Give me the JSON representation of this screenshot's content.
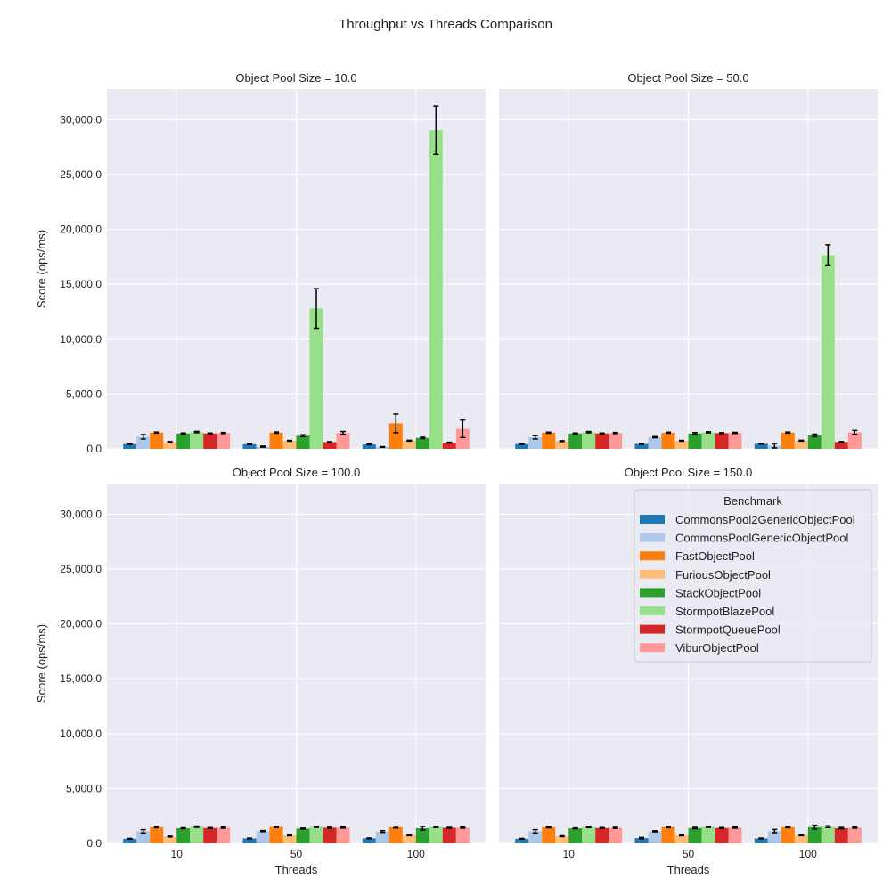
{
  "figure": {
    "title": "Throughput vs Threads Comparison",
    "background": "#ffffff",
    "axes_background": "#eaeaf2",
    "grid_color": "#ffffff",
    "errorbar_color": "#000000"
  },
  "chart_data": {
    "type": "bar",
    "title": "Throughput vs Threads Comparison",
    "xlabel": "Threads",
    "ylabel": "Score (ops/ms)",
    "ylim": [
      0,
      32800
    ],
    "yticks": [
      "0.0",
      "5,000.0",
      "10,000.0",
      "15,000.0",
      "20,000.0",
      "25,000.0",
      "30,000.0"
    ],
    "ytick_values": [
      0,
      5000,
      10000,
      15000,
      20000,
      25000,
      30000
    ],
    "categories": [
      "10",
      "50",
      "100"
    ],
    "grid": true,
    "legend": {
      "title": "Benchmark",
      "placement": "top-right of panel 4",
      "series": [
        {
          "name": "CommonsPool2GenericObjectPool",
          "color": "#1f77b4"
        },
        {
          "name": "CommonsPoolGenericObjectPool",
          "color": "#aec7e8"
        },
        {
          "name": "FastObjectPool",
          "color": "#ff7f0e"
        },
        {
          "name": "FuriousObjectPool",
          "color": "#ffbb78"
        },
        {
          "name": "StackObjectPool",
          "color": "#2ca02c"
        },
        {
          "name": "StormpotBlazePool",
          "color": "#98df8a"
        },
        {
          "name": "StormpotQueuePool",
          "color": "#d62728"
        },
        {
          "name": "ViburObjectPool",
          "color": "#ff9896"
        }
      ]
    },
    "panels": [
      {
        "title": "Object Pool Size = 10.0",
        "values": [
          [
            430,
            420,
            400
          ],
          [
            1100,
            200,
            170
          ],
          [
            1480,
            1480,
            2320
          ],
          [
            620,
            730,
            740
          ],
          [
            1400,
            1200,
            1000
          ],
          [
            1530,
            12800,
            29050
          ],
          [
            1400,
            610,
            560
          ],
          [
            1440,
            1450,
            1830
          ]
        ],
        "errors": [
          [
            30,
            30,
            30
          ],
          [
            200,
            50,
            30
          ],
          [
            50,
            60,
            850
          ],
          [
            40,
            40,
            40
          ],
          [
            40,
            80,
            60
          ],
          [
            60,
            1800,
            2200
          ],
          [
            40,
            40,
            40
          ],
          [
            50,
            130,
            800
          ]
        ]
      },
      {
        "title": "Object Pool Size = 50.0",
        "values": [
          [
            430,
            450,
            460
          ],
          [
            1050,
            1060,
            280
          ],
          [
            1470,
            1470,
            1480
          ],
          [
            700,
            730,
            740
          ],
          [
            1400,
            1400,
            1220
          ],
          [
            1520,
            1510,
            17650
          ],
          [
            1400,
            1430,
            620
          ],
          [
            1440,
            1450,
            1500
          ]
        ],
        "errors": [
          [
            30,
            30,
            30
          ],
          [
            150,
            50,
            200
          ],
          [
            50,
            50,
            50
          ],
          [
            40,
            40,
            40
          ],
          [
            40,
            80,
            120
          ],
          [
            60,
            50,
            950
          ],
          [
            40,
            40,
            40
          ],
          [
            50,
            50,
            180
          ]
        ]
      },
      {
        "title": "Object Pool Size = 100.0",
        "values": [
          [
            420,
            450,
            460
          ],
          [
            1100,
            1120,
            1080
          ],
          [
            1480,
            1500,
            1480
          ],
          [
            620,
            730,
            740
          ],
          [
            1380,
            1350,
            1380
          ],
          [
            1520,
            1510,
            1500
          ],
          [
            1400,
            1430,
            1420
          ],
          [
            1430,
            1440,
            1430
          ]
        ],
        "errors": [
          [
            30,
            30,
            30
          ],
          [
            150,
            50,
            80
          ],
          [
            50,
            50,
            80
          ],
          [
            40,
            40,
            40
          ],
          [
            40,
            40,
            160
          ],
          [
            60,
            50,
            60
          ],
          [
            40,
            40,
            40
          ],
          [
            50,
            50,
            50
          ]
        ]
      },
      {
        "title": "Object Pool Size = 150.0",
        "values": [
          [
            420,
            480,
            450
          ],
          [
            1100,
            1100,
            1120
          ],
          [
            1470,
            1480,
            1480
          ],
          [
            650,
            730,
            740
          ],
          [
            1370,
            1400,
            1480
          ],
          [
            1500,
            1510,
            1520
          ],
          [
            1400,
            1400,
            1390
          ],
          [
            1420,
            1430,
            1430
          ]
        ],
        "errors": [
          [
            30,
            60,
            30
          ],
          [
            150,
            50,
            150
          ],
          [
            50,
            50,
            50
          ],
          [
            40,
            40,
            40
          ],
          [
            40,
            60,
            170
          ],
          [
            60,
            50,
            80
          ],
          [
            40,
            40,
            60
          ],
          [
            50,
            50,
            50
          ]
        ]
      }
    ]
  }
}
